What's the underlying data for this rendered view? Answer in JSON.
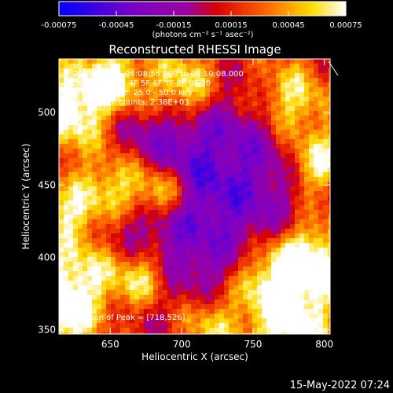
{
  "chart_data": {
    "type": "heatmap",
    "title": "Reconstructed RHESSI Image",
    "xlabel": "Heliocentric X (arcsec)",
    "ylabel": "Heliocentric Y (arcsec)",
    "xlim": [
      614,
      804
    ],
    "ylim": [
      347,
      537
    ],
    "x_ticks": [
      650,
      700,
      750,
      800
    ],
    "y_ticks": [
      350,
      400,
      450,
      500
    ],
    "colorbar": {
      "min": -0.00075,
      "max": 0.00075,
      "tick_labels": [
        "-0.00075",
        "-0.00045",
        "-0.00015",
        "0.00015",
        "0.00045",
        "0.00075"
      ],
      "units": "(photons cm⁻² s⁻¹ asec⁻²)",
      "colormap": "RHESSI color table (blue-purple-red-orange-yellow-white)"
    },
    "annotations": {
      "time": "20-Oct-2011 06:08:56.000 to 06:10:08.000",
      "detectors": "Detectors: 3F 4F 5F 6F 7F 8F 9F 10",
      "energy": "Energy Range: 25.0 - 50.0 keV",
      "algorithm": "Clean    Total counts: 2.38E+03",
      "peak": "Position of Peak = [718,526]"
    },
    "peak_position": [
      718,
      526
    ],
    "grid": false,
    "legend": "none"
  },
  "footer": {
    "timestamp": "15-May-2022 07:24"
  }
}
